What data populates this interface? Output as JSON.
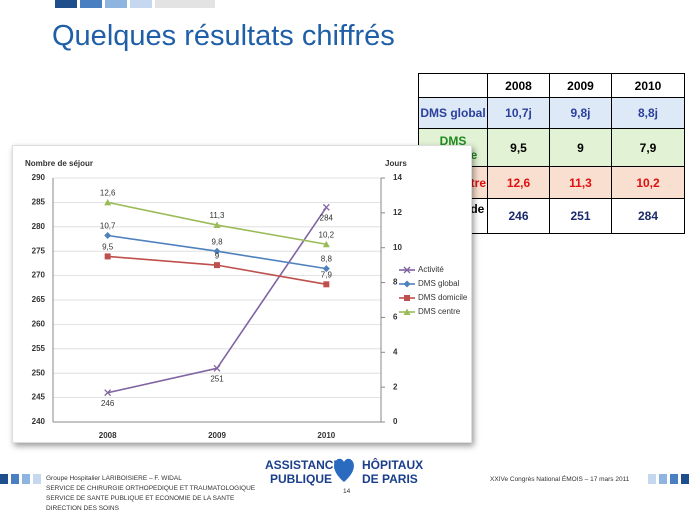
{
  "slide": {
    "title": "Quelques résultats chiffrés",
    "footer": {
      "lines": [
        "Groupe Hospitalier LARIBOISIERE  – F. WIDAL",
        "SERVICE DE CHIRURGIE  ORTHOPEDIQUE  ET TRAUMATOLOGIQUE",
        "SERVICE DE SANTE PUBLIQUE  ET ECONOMIE  DE LA SANTE",
        "DIRECTION  DES SOINS"
      ],
      "page": "14",
      "logo_left": [
        "ASSISTANCE",
        "PUBLIQUE"
      ],
      "logo_right": [
        "HÔPITAUX",
        "DE PARIS"
      ],
      "event": "XXIVe Congrès National ÉMOIS  – 17 mars 2011"
    },
    "table": {
      "header": [
        "2008",
        "2009",
        "2010"
      ],
      "rows": [
        [
          "DMS global",
          "10,7j",
          "9,8j",
          "8,8j"
        ],
        [
          "DMS domicile",
          "9,5",
          "9",
          "7,9"
        ],
        [
          "DMS centre",
          "12,6",
          "11,3",
          "10,2"
        ],
        [
          "Nombre de séjour",
          "246",
          "251",
          "284"
        ]
      ]
    }
  },
  "chart_data": {
    "type": "line",
    "y_label": "Nombre de séjour",
    "y2_label": "Jours",
    "categories": [
      "2008",
      "2009",
      "2010"
    ],
    "ylim": [
      240,
      290
    ],
    "yticks": [
      240,
      245,
      250,
      255,
      260,
      265,
      270,
      275,
      280,
      285,
      290
    ],
    "y2lim": [
      0,
      14
    ],
    "y2ticks": [
      0,
      2,
      4,
      6,
      8,
      10,
      12,
      14
    ],
    "grid": true,
    "series": [
      {
        "name": "Activité",
        "color": "#8064a2",
        "values": [
          246,
          251,
          284
        ]
      },
      {
        "name": "DMS global",
        "color": "#4f81bd",
        "axis": "y2",
        "values": [
          10.7,
          9.8,
          8.8
        ],
        "value_labels": [
          "10,7",
          "9,8",
          "8,8"
        ]
      },
      {
        "name": "DMS domicile",
        "color": "#c0504d",
        "axis": "y2",
        "values": [
          9.5,
          9,
          7.9
        ],
        "value_labels": [
          "9,5",
          "9",
          "7,9"
        ]
      },
      {
        "name": "DMS centre",
        "color": "#9bbb59",
        "axis": "y2",
        "values": [
          12.6,
          11.3,
          10.2
        ],
        "value_labels": [
          "12,6",
          "11,3",
          "10,2"
        ]
      }
    ]
  }
}
